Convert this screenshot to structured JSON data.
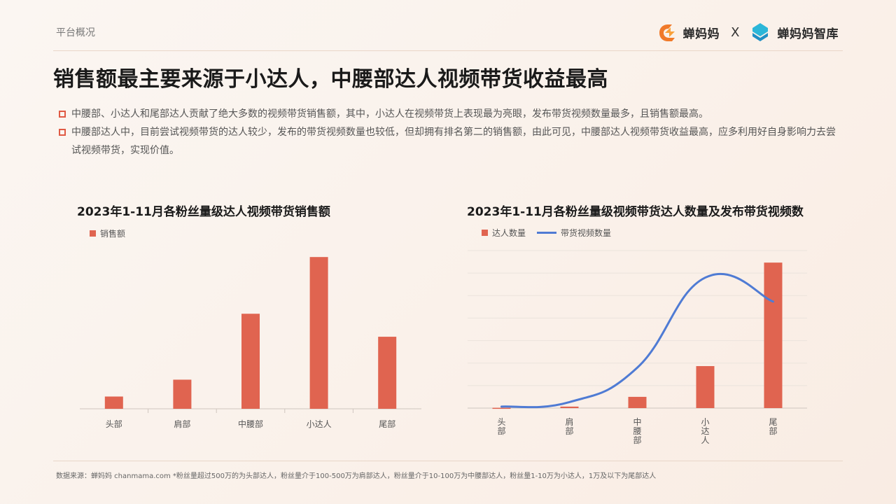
{
  "header": {
    "section": "平台概况",
    "logo1": "蝉妈妈",
    "separator": "X",
    "logo2": "蝉妈妈智库"
  },
  "title": "销售额最主要来源于小达人，中腰部达人视频带货收益最高",
  "bullets": [
    "中腰部、小达人和尾部达人贡献了绝大多数的视频带货销售额，其中，小达人在视频带货上表现最为亮眼，发布带货视频数量最多，且销售额最高。",
    "中腰部达人中，目前尝试视频带货的达人较少，发布的带货视频数量也较低，但却拥有排名第二的销售额，由此可见，中腰部达人视频带货收益最高，应多利用好自身影响力去尝试视频带货，实现价值。"
  ],
  "footnote": "数据来源：蝉妈妈 chanmama.com  *粉丝量超过500万的为头部达人，粉丝量介于100-500万为肩部达人，粉丝量介于10-100万为中腰部达人，粉丝量1-10万为小达人，1万及以下为尾部达人",
  "colors": {
    "bar": "#e06450",
    "line": "#4f7bd4",
    "accent": "#e05a44"
  },
  "chart_data": [
    {
      "type": "bar",
      "title": "2023年1-11月各粉丝量级达人视频带货销售额",
      "categories": [
        "头部",
        "肩部",
        "中腰部",
        "小达人",
        "尾部"
      ],
      "series": [
        {
          "name": "销售额",
          "values": [
            8,
            19,
            62,
            99,
            47
          ]
        }
      ],
      "ylim": [
        0,
        100
      ],
      "grid": false,
      "legend": "top-left"
    },
    {
      "type": "bar",
      "title": "2023年1-11月各粉丝量级视频带货达人数量及发布带货视频数",
      "categories": [
        "头部",
        "肩部",
        "中腰部",
        "小达人",
        "尾部"
      ],
      "series": [
        {
          "name": "达人数量",
          "type": "bar",
          "values": [
            0.2,
            1,
            7.5,
            28,
            97
          ]
        },
        {
          "name": "带货视频数量",
          "type": "line",
          "values": [
            1,
            4,
            27,
            87,
            71
          ]
        }
      ],
      "ylim": [
        0,
        105
      ],
      "grid": true,
      "legend": "top-left"
    }
  ]
}
